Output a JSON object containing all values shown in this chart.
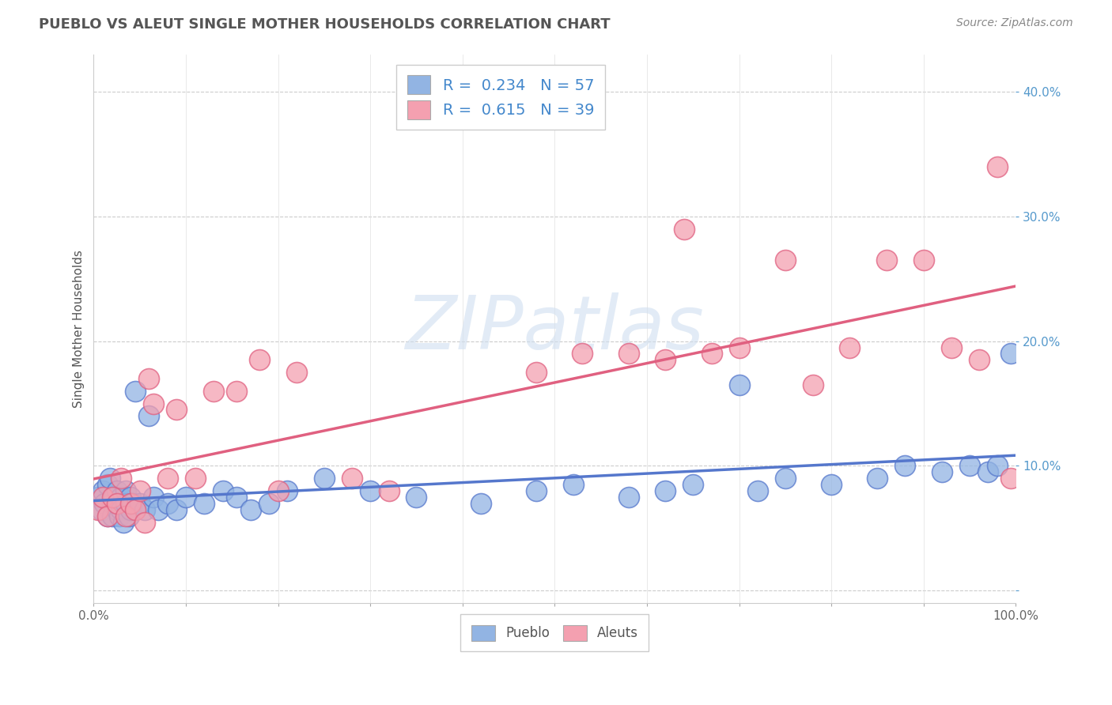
{
  "title": "PUEBLO VS ALEUT SINGLE MOTHER HOUSEHOLDS CORRELATION CHART",
  "source": "Source: ZipAtlas.com",
  "ylabel": "Single Mother Households",
  "xlim": [
    0,
    1.0
  ],
  "ylim": [
    -0.01,
    0.43
  ],
  "xticks": [
    0.0,
    0.1,
    0.2,
    0.3,
    0.4,
    0.5,
    0.6,
    0.7,
    0.8,
    0.9,
    1.0
  ],
  "xtick_labels": [
    "0.0%",
    "",
    "",
    "",
    "",
    "",
    "",
    "",
    "",
    "",
    "100.0%"
  ],
  "yticks": [
    0.0,
    0.1,
    0.2,
    0.3,
    0.4
  ],
  "ytick_labels": [
    "",
    "10.0%",
    "20.0%",
    "30.0%",
    "40.0%"
  ],
  "pueblo_color": "#92b4e3",
  "aleut_color": "#f4a0b0",
  "pueblo_line_color": "#5577cc",
  "aleut_line_color": "#e06080",
  "background_color": "#ffffff",
  "grid_color": "#cccccc",
  "pueblo_R": 0.234,
  "pueblo_N": 57,
  "aleut_R": 0.615,
  "aleut_N": 39,
  "pueblo_x": [
    0.005,
    0.008,
    0.01,
    0.012,
    0.015,
    0.015,
    0.018,
    0.02,
    0.02,
    0.022,
    0.025,
    0.025,
    0.028,
    0.03,
    0.03,
    0.032,
    0.035,
    0.035,
    0.038,
    0.04,
    0.04,
    0.042,
    0.045,
    0.05,
    0.055,
    0.06,
    0.065,
    0.07,
    0.08,
    0.09,
    0.1,
    0.12,
    0.14,
    0.155,
    0.17,
    0.19,
    0.21,
    0.25,
    0.3,
    0.35,
    0.42,
    0.48,
    0.52,
    0.58,
    0.62,
    0.65,
    0.7,
    0.72,
    0.75,
    0.8,
    0.85,
    0.88,
    0.92,
    0.95,
    0.97,
    0.98,
    0.995
  ],
  "pueblo_y": [
    0.075,
    0.065,
    0.08,
    0.07,
    0.06,
    0.085,
    0.09,
    0.07,
    0.06,
    0.075,
    0.065,
    0.08,
    0.06,
    0.075,
    0.065,
    0.055,
    0.08,
    0.07,
    0.06,
    0.075,
    0.065,
    0.07,
    0.16,
    0.07,
    0.065,
    0.14,
    0.075,
    0.065,
    0.07,
    0.065,
    0.075,
    0.07,
    0.08,
    0.075,
    0.065,
    0.07,
    0.08,
    0.09,
    0.08,
    0.075,
    0.07,
    0.08,
    0.085,
    0.075,
    0.08,
    0.085,
    0.165,
    0.08,
    0.09,
    0.085,
    0.09,
    0.1,
    0.095,
    0.1,
    0.095,
    0.1,
    0.19
  ],
  "aleut_x": [
    0.005,
    0.01,
    0.015,
    0.02,
    0.025,
    0.03,
    0.035,
    0.04,
    0.045,
    0.05,
    0.055,
    0.06,
    0.065,
    0.08,
    0.09,
    0.11,
    0.13,
    0.155,
    0.18,
    0.2,
    0.22,
    0.28,
    0.32,
    0.48,
    0.53,
    0.58,
    0.62,
    0.64,
    0.67,
    0.7,
    0.75,
    0.78,
    0.82,
    0.86,
    0.9,
    0.93,
    0.96,
    0.98,
    0.995
  ],
  "aleut_y": [
    0.065,
    0.075,
    0.06,
    0.075,
    0.07,
    0.09,
    0.06,
    0.07,
    0.065,
    0.08,
    0.055,
    0.17,
    0.15,
    0.09,
    0.145,
    0.09,
    0.16,
    0.16,
    0.185,
    0.08,
    0.175,
    0.09,
    0.08,
    0.175,
    0.19,
    0.19,
    0.185,
    0.29,
    0.19,
    0.195,
    0.265,
    0.165,
    0.195,
    0.265,
    0.265,
    0.195,
    0.185,
    0.34,
    0.09
  ]
}
